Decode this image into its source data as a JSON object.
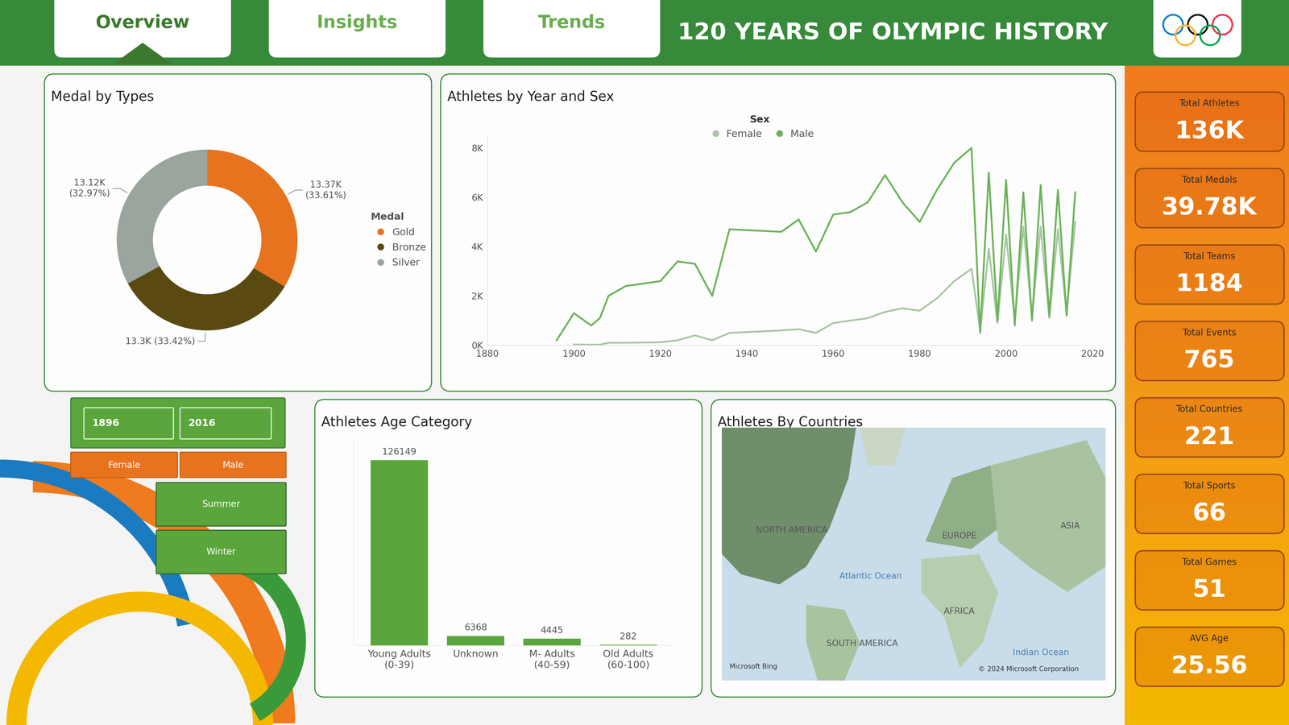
{
  "header": {
    "title": "120 YEARS OF OLYMPIC HISTORY",
    "tabs": [
      "Overview",
      "Insights",
      "Trends"
    ],
    "active_tab": "Overview"
  },
  "kpis": [
    {
      "label": "Total Athletes",
      "value": "136K"
    },
    {
      "label": "Total Medals",
      "value": "39.78K"
    },
    {
      "label": "Total Teams",
      "value": "1184"
    },
    {
      "label": "Total Events",
      "value": "765"
    },
    {
      "label": "Total Countries",
      "value": "221"
    },
    {
      "label": "Total Sports",
      "value": "66"
    },
    {
      "label": "Total Games",
      "value": "51"
    },
    {
      "label": "AVG Age",
      "value": "25.56"
    }
  ],
  "slicers": {
    "years": [
      "1896",
      "2016"
    ],
    "sex": [
      "Female",
      "Male"
    ],
    "season": [
      "Summer",
      "Winter"
    ]
  },
  "chart_data": [
    {
      "type": "donut",
      "title": "Medal by Types",
      "legend_title": "Medal",
      "legend": "center left",
      "categories": [
        "Gold",
        "Bronze",
        "Silver"
      ],
      "values": [
        13370,
        13300,
        13120
      ],
      "value_labels": [
        "13.37K\n(33.61%)",
        "13.3K (33.42%)",
        "13.12K\n(32.97%)"
      ],
      "colors": [
        "#E8731F",
        "#5A4A12",
        "#99A59D"
      ],
      "data_labels": true
    },
    {
      "type": "line",
      "title": "Athletes by Year and Sex",
      "legend_title": "Sex",
      "legend": "upper center",
      "x": [
        1896,
        1900,
        1904,
        1906,
        1908,
        1912,
        1920,
        1924,
        1928,
        1932,
        1936,
        1948,
        1952,
        1956,
        1960,
        1964,
        1968,
        1972,
        1976,
        1980,
        1984,
        1988,
        1992,
        1994,
        1996,
        1998,
        2000,
        2002,
        2004,
        2006,
        2008,
        2010,
        2012,
        2014,
        2016
      ],
      "series": [
        {
          "name": "Female",
          "color": "#A9C7A3",
          "values": [
            null,
            30,
            20,
            20,
            100,
            100,
            120,
            200,
            400,
            200,
            500,
            600,
            650,
            500,
            900,
            1000,
            1100,
            1350,
            1500,
            1400,
            1900,
            2600,
            3100,
            600,
            3900,
            900,
            4500,
            1000,
            4800,
            1200,
            4800,
            1100,
            4700,
            1300,
            5000
          ]
        },
        {
          "name": "Male",
          "color": "#6DB35A",
          "values": [
            200,
            1300,
            800,
            1100,
            2000,
            2400,
            2600,
            3400,
            3300,
            2000,
            4700,
            4600,
            5100,
            3800,
            5300,
            5400,
            5800,
            6900,
            5800,
            5000,
            6300,
            7400,
            8000,
            500,
            7000,
            1000,
            6700,
            800,
            6200,
            1000,
            6500,
            1200,
            6300,
            1200,
            6200
          ]
        }
      ],
      "xlim": [
        1880,
        2020
      ],
      "ylim": [
        0,
        8500
      ],
      "xticks": [
        1880,
        1900,
        1920,
        1940,
        1960,
        1980,
        2000,
        2020
      ],
      "yticks": [
        {
          "value": 0,
          "label": "0K"
        },
        {
          "value": 2000,
          "label": "2K"
        },
        {
          "value": 4000,
          "label": "4K"
        },
        {
          "value": 6000,
          "label": "6K"
        },
        {
          "value": 8000,
          "label": "8K"
        }
      ],
      "grid": false
    },
    {
      "type": "bar",
      "title": "Athletes Age Category",
      "categories": [
        "Young Adults\n(0-39)",
        "Unknown",
        "M- Adults\n(40-59)",
        "Old Adults\n(60-100)"
      ],
      "values": [
        126149,
        6368,
        4445,
        282
      ],
      "color": "#5BA63C",
      "ylim": [
        0,
        140000
      ],
      "data_labels": true,
      "tick_labels": "x"
    },
    {
      "type": "map",
      "title": "Athletes By Countries",
      "labels": [
        "NORTH AMERICA",
        "EUROPE",
        "ASIA",
        "Atlantic Ocean",
        "AFRICA",
        "SOUTH AMERICA",
        "Indian Ocean"
      ],
      "credits": [
        "Microsoft Bing",
        "© 2024 Microsoft Corporation"
      ]
    }
  ]
}
